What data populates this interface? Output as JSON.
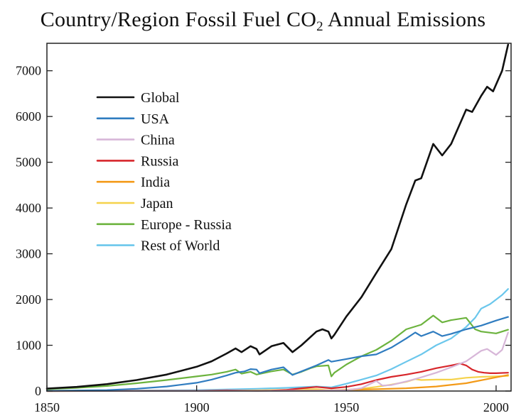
{
  "chart_data": {
    "type": "line",
    "title_prefix": "Country/Region Fossil Fuel CO",
    "title_subscript": "2",
    "title_suffix": " Annual Emissions",
    "xlabel": "",
    "ylabel": "",
    "xlim": [
      1850,
      2005
    ],
    "ylim": [
      0,
      7600
    ],
    "x_ticks": [
      1850,
      1900,
      1950,
      2000
    ],
    "y_ticks": [
      0,
      1000,
      2000,
      3000,
      4000,
      5000,
      6000,
      7000
    ],
    "grid": false,
    "legend_position": "top-left",
    "series": [
      {
        "name": "Global",
        "color": "#111111",
        "x": [
          1850,
          1860,
          1870,
          1880,
          1890,
          1900,
          1905,
          1910,
          1913,
          1915,
          1918,
          1920,
          1921,
          1925,
          1929,
          1932,
          1935,
          1940,
          1942,
          1944,
          1945,
          1946,
          1950,
          1955,
          1960,
          1965,
          1970,
          1973,
          1975,
          1979,
          1982,
          1985,
          1990,
          1992,
          1995,
          1997,
          1999,
          2002,
          2004
        ],
        "y": [
          55,
          90,
          150,
          240,
          360,
          530,
          650,
          820,
          930,
          850,
          980,
          920,
          800,
          980,
          1050,
          850,
          1000,
          1300,
          1350,
          1300,
          1150,
          1230,
          1630,
          2050,
          2580,
          3100,
          4080,
          4600,
          4650,
          5400,
          5150,
          5400,
          6150,
          6100,
          6450,
          6650,
          6550,
          7000,
          7570
        ]
      },
      {
        "name": "USA",
        "color": "#2f7cc0",
        "x": [
          1850,
          1870,
          1880,
          1890,
          1900,
          1905,
          1910,
          1913,
          1916,
          1918,
          1920,
          1921,
          1925,
          1929,
          1932,
          1935,
          1940,
          1944,
          1945,
          1950,
          1955,
          1960,
          1965,
          1970,
          1973,
          1975,
          1979,
          1982,
          1985,
          1990,
          1995,
          2000,
          2004
        ],
        "y": [
          5,
          20,
          50,
          100,
          180,
          250,
          340,
          400,
          430,
          480,
          470,
          390,
          470,
          520,
          350,
          430,
          560,
          680,
          640,
          700,
          760,
          800,
          950,
          1150,
          1280,
          1200,
          1300,
          1200,
          1250,
          1350,
          1430,
          1540,
          1620
        ]
      },
      {
        "name": "China",
        "color": "#d7b6d8",
        "x": [
          1850,
          1900,
          1940,
          1950,
          1955,
          1960,
          1962,
          1965,
          1970,
          1975,
          1980,
          1985,
          1990,
          1995,
          1997,
          2000,
          2002,
          2004
        ],
        "y": [
          0,
          2,
          10,
          20,
          60,
          220,
          120,
          130,
          210,
          300,
          400,
          520,
          650,
          880,
          920,
          790,
          900,
          1280
        ]
      },
      {
        "name": "Russia",
        "color": "#d7262b",
        "x": [
          1850,
          1900,
          1910,
          1920,
          1925,
          1930,
          1935,
          1940,
          1945,
          1950,
          1955,
          1960,
          1965,
          1970,
          1975,
          1980,
          1985,
          1988,
          1990,
          1992,
          1994,
          1996,
          1998,
          2000,
          2004
        ],
        "y": [
          0,
          5,
          15,
          5,
          10,
          25,
          60,
          90,
          60,
          90,
          150,
          240,
          310,
          360,
          420,
          500,
          560,
          600,
          560,
          470,
          420,
          400,
          390,
          390,
          400
        ]
      },
      {
        "name": "India",
        "color": "#f39a18",
        "x": [
          1850,
          1900,
          1920,
          1940,
          1950,
          1960,
          1970,
          1980,
          1990,
          2000,
          2004
        ],
        "y": [
          0,
          5,
          10,
          15,
          25,
          40,
          60,
          100,
          170,
          300,
          350
        ]
      },
      {
        "name": "Japan",
        "color": "#f5d24b",
        "x": [
          1850,
          1900,
          1920,
          1935,
          1940,
          1945,
          1950,
          1955,
          1960,
          1965,
          1970,
          1973,
          1975,
          1980,
          1985,
          1990,
          1995,
          2000,
          2004
        ],
        "y": [
          0,
          5,
          15,
          35,
          40,
          10,
          30,
          50,
          90,
          140,
          200,
          260,
          240,
          250,
          250,
          290,
          310,
          320,
          330
        ]
      },
      {
        "name": "Europe - Russia",
        "color": "#6cb33e",
        "x": [
          1850,
          1860,
          1870,
          1880,
          1890,
          1900,
          1905,
          1910,
          1913,
          1915,
          1918,
          1920,
          1925,
          1929,
          1932,
          1935,
          1938,
          1940,
          1944,
          1945,
          1946,
          1950,
          1955,
          1960,
          1965,
          1970,
          1975,
          1979,
          1982,
          1985,
          1990,
          1993,
          1995,
          2000,
          2004
        ],
        "y": [
          40,
          70,
          110,
          170,
          240,
          320,
          360,
          420,
          470,
          380,
          420,
          360,
          430,
          470,
          360,
          420,
          500,
          540,
          560,
          320,
          400,
          580,
          760,
          900,
          1100,
          1350,
          1450,
          1650,
          1500,
          1550,
          1600,
          1350,
          1300,
          1260,
          1340
        ]
      },
      {
        "name": "Rest of World",
        "color": "#6bc7ec",
        "x": [
          1850,
          1900,
          1920,
          1930,
          1940,
          1945,
          1950,
          1955,
          1960,
          1965,
          1970,
          1975,
          1980,
          1985,
          1990,
          1993,
          1995,
          1998,
          2000,
          2002,
          2004
        ],
        "y": [
          0,
          20,
          50,
          70,
          100,
          80,
          160,
          250,
          340,
          480,
          640,
          800,
          1000,
          1150,
          1400,
          1600,
          1800,
          1900,
          2000,
          2100,
          2230
        ]
      }
    ]
  }
}
